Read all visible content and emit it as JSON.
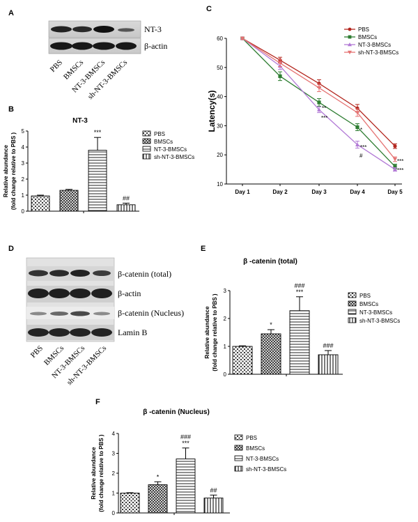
{
  "panels": {
    "A": {
      "letter": "A",
      "band_labels": [
        "NT-3",
        "β-actin"
      ],
      "lanes": [
        "PBS",
        "BMSCs",
        "NT-3-BMSCs",
        "sh-NT-3-BMSCs"
      ]
    },
    "D": {
      "letter": "D",
      "band_labels": [
        "β-catenin (total)",
        "β-actin",
        "β-catenin (Nucleus)",
        "Lamin B"
      ],
      "lanes": [
        "PBS",
        "BMSCs",
        "NT-3-BMSCs",
        "sh-NT-3-BMSCs"
      ]
    }
  },
  "colors": {
    "PBS": "#b3261e",
    "BMSCs": "#2e7d32",
    "NT-3-BMSCs": "#b27ad6",
    "sh-NT-3-BMSCs": "#e57373"
  },
  "chart_data": [
    {
      "id": "B",
      "letter": "B",
      "type": "bar",
      "title": "NT-3",
      "ylabel": "Relative abundance",
      "ylabel2": "(fold change relative to PBS )",
      "ylim": [
        0,
        5
      ],
      "yticks": [
        "0",
        "1",
        "2",
        "3",
        "4",
        "5"
      ],
      "categories": [
        "PBS",
        "BMSCs",
        "NT-3-BMSCs",
        "sh-NT-3-BMSCs"
      ],
      "values": [
        0.95,
        1.3,
        3.8,
        0.4
      ],
      "errors": [
        0.05,
        0.06,
        0.8,
        0.1
      ],
      "annotations": [
        "",
        "",
        "***",
        "##"
      ],
      "legend": [
        "PBS",
        "BMSCs",
        "NT-3-BMSCs",
        "sh-NT-3-BMSCs"
      ]
    },
    {
      "id": "C",
      "letter": "C",
      "type": "line",
      "ylabel": "Latency(s)",
      "ylim": [
        10,
        60
      ],
      "yticks": [
        "10",
        "20",
        "30",
        "40",
        "50",
        "60"
      ],
      "x": [
        "Day 1",
        "Day 2",
        "Day 3",
        "Day 4",
        "Day 5"
      ],
      "series": [
        {
          "name": "PBS",
          "values": [
            60,
            52.5,
            44.5,
            36,
            23
          ],
          "errors": [
            0.4,
            1.0,
            1.3,
            1.3,
            0.8
          ]
        },
        {
          "name": "BMSCs",
          "values": [
            60,
            47,
            38,
            29.5,
            16
          ],
          "errors": [
            0.4,
            1.5,
            1.3,
            1.2,
            0.8
          ]
        },
        {
          "name": "NT-3-BMSCs",
          "values": [
            60,
            50.5,
            35.5,
            23.5,
            15
          ],
          "errors": [
            0.4,
            1.2,
            1.0,
            1.2,
            0.6
          ]
        },
        {
          "name": "sh-NT-3-BMSCs",
          "values": [
            60,
            51.5,
            43,
            34.5,
            18.5
          ],
          "errors": [
            0.4,
            1.2,
            1.3,
            1.3,
            0.8
          ]
        }
      ],
      "annotations": [
        "**",
        "***",
        "*",
        "***",
        "#",
        "***",
        "***"
      ],
      "legend": [
        "PBS",
        "BMSCs",
        "NT-3-BMSCs",
        "sh-NT-3-BMSCs"
      ]
    },
    {
      "id": "E",
      "letter": "E",
      "type": "bar",
      "title": "β -catenin (total)",
      "ylabel": "Relative abundance",
      "ylabel2": "(fold change relative to PBS )",
      "ylim": [
        0,
        3
      ],
      "yticks": [
        "0",
        "1",
        "2",
        "3"
      ],
      "categories": [
        "PBS",
        "BMSCs",
        "NT-3-BMSCs",
        "sh-NT-3-BMSCs"
      ],
      "values": [
        1.0,
        1.45,
        2.28,
        0.7
      ],
      "errors": [
        0.02,
        0.15,
        0.5,
        0.15
      ],
      "annotations": [
        "",
        "*",
        "###\n***",
        "###"
      ],
      "legend": [
        "PBS",
        "BMSCs",
        "NT-3-BMSCs",
        "sh-NT-3-BMSCs"
      ]
    },
    {
      "id": "F",
      "letter": "F",
      "type": "bar",
      "title": "β -catenin (Nucleus)",
      "ylabel": "Relative abundance",
      "ylabel2": "(fold change relative to PBS )",
      "ylim": [
        0,
        4
      ],
      "yticks": [
        "0",
        "1",
        "2",
        "3",
        "4"
      ],
      "categories": [
        "PBS",
        "BMSCs",
        "NT-3-BMSCs",
        "sh-NT-3-BMSCs"
      ],
      "values": [
        1.0,
        1.42,
        2.72,
        0.75
      ],
      "errors": [
        0.02,
        0.15,
        0.55,
        0.15
      ],
      "annotations": [
        "",
        "*",
        "###\n***",
        "##"
      ],
      "legend": [
        "PBS",
        "BMSCs",
        "NT-3-BMSCs",
        "sh-NT-3-BMSCs"
      ]
    }
  ]
}
